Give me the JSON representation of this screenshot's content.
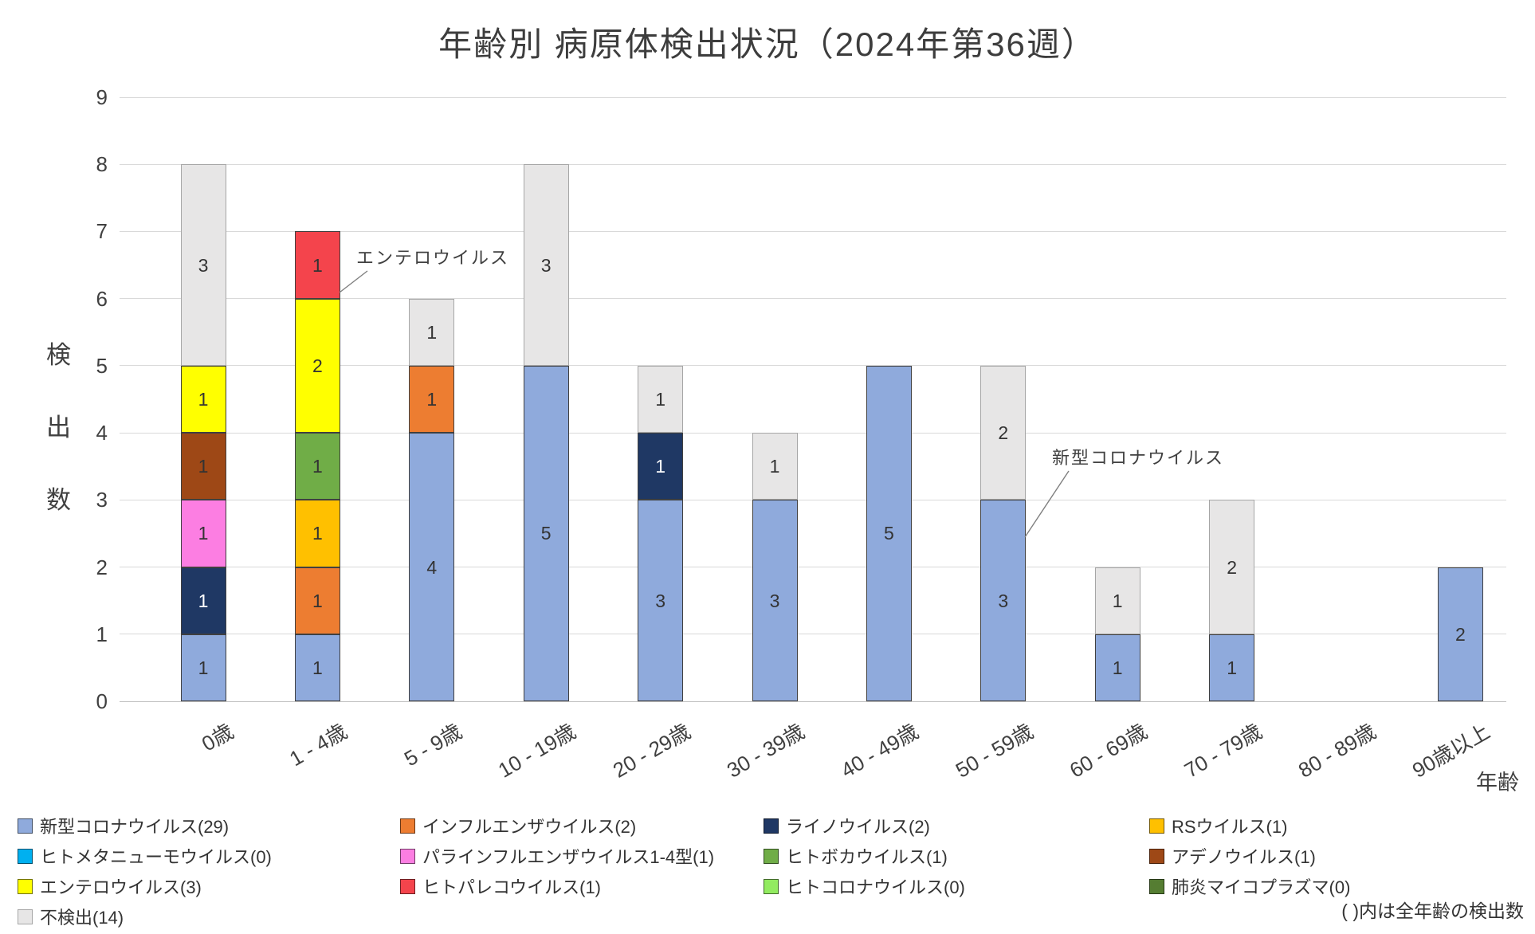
{
  "page": {
    "note": "( )内は全年齢の検出数"
  },
  "chart_data": {
    "type": "bar",
    "subtype": "stacked",
    "title": "年齢別 病原体検出状況（2024年第36週）",
    "xlabel": "年齢",
    "ylabel": "検出数",
    "ylim": [
      0,
      9
    ],
    "yticks": [
      0,
      1,
      2,
      3,
      4,
      5,
      6,
      7,
      8,
      9
    ],
    "grid": true,
    "legend_position": "bottom",
    "categories": [
      "0歳",
      "1 - 4歳",
      "5 - 9歳",
      "10 - 19歳",
      "20 - 29歳",
      "30 - 39歳",
      "40 - 49歳",
      "50 - 59歳",
      "60 - 69歳",
      "70 - 79歳",
      "80 - 89歳",
      "90歳以上"
    ],
    "series": [
      {
        "name": "新型コロナウイルス",
        "count": 29,
        "legend_label": "新型コロナウイルス(29)",
        "color": "#8FAADC",
        "values": [
          1,
          1,
          4,
          5,
          3,
          3,
          5,
          3,
          1,
          1,
          0,
          2
        ]
      },
      {
        "name": "インフルエンザウイルス",
        "count": 2,
        "legend_label": "インフルエンザウイルス(2)",
        "color": "#ED7D31",
        "values": [
          0,
          1,
          1,
          0,
          0,
          0,
          0,
          0,
          0,
          0,
          0,
          0
        ]
      },
      {
        "name": "ライノウイルス",
        "count": 2,
        "legend_label": "ライノウイルス(2)",
        "color": "#1F3864",
        "value_text_color": "#FFFFFF",
        "values": [
          1,
          0,
          0,
          0,
          1,
          0,
          0,
          0,
          0,
          0,
          0,
          0
        ]
      },
      {
        "name": "RSウイルス",
        "count": 1,
        "legend_label": "RSウイルス(1)",
        "color": "#FFC000",
        "values": [
          0,
          1,
          0,
          0,
          0,
          0,
          0,
          0,
          0,
          0,
          0,
          0
        ]
      },
      {
        "name": "ヒトメタニューモウイルス",
        "count": 0,
        "legend_label": "ヒトメタニューモウイルス(0)",
        "color": "#00B0F0",
        "values": [
          0,
          0,
          0,
          0,
          0,
          0,
          0,
          0,
          0,
          0,
          0,
          0
        ]
      },
      {
        "name": "パラインフルエンザウイルス1-4型",
        "count": 1,
        "legend_label": "パラインフルエンザウイルス1-4型(1)",
        "color": "#FC7EE2",
        "values": [
          1,
          0,
          0,
          0,
          0,
          0,
          0,
          0,
          0,
          0,
          0,
          0
        ]
      },
      {
        "name": "ヒトボカウイルス",
        "count": 1,
        "legend_label": "ヒトボカウイルス(1)",
        "color": "#70AD47",
        "values": [
          0,
          1,
          0,
          0,
          0,
          0,
          0,
          0,
          0,
          0,
          0,
          0
        ]
      },
      {
        "name": "アデノウイルス",
        "count": 1,
        "legend_label": "アデノウイルス(1)",
        "color": "#9E4816",
        "values": [
          1,
          0,
          0,
          0,
          0,
          0,
          0,
          0,
          0,
          0,
          0,
          0
        ]
      },
      {
        "name": "エンテロウイルス",
        "count": 3,
        "legend_label": "エンテロウイルス(3)",
        "color": "#FFFF00",
        "values": [
          1,
          2,
          0,
          0,
          0,
          0,
          0,
          0,
          0,
          0,
          0,
          0
        ]
      },
      {
        "name": "ヒトパレコウイルス",
        "count": 1,
        "legend_label": "ヒトパレコウイルス(1)",
        "color": "#F4444C",
        "values": [
          0,
          1,
          0,
          0,
          0,
          0,
          0,
          0,
          0,
          0,
          0,
          0
        ]
      },
      {
        "name": "ヒトコロナウイルス",
        "count": 0,
        "legend_label": "ヒトコロナウイルス(0)",
        "color": "#92EB60",
        "values": [
          0,
          0,
          0,
          0,
          0,
          0,
          0,
          0,
          0,
          0,
          0,
          0
        ]
      },
      {
        "name": "肺炎マイコプラズマ",
        "count": 0,
        "legend_label": "肺炎マイコプラズマ(0)",
        "color": "#557D32",
        "values": [
          0,
          0,
          0,
          0,
          0,
          0,
          0,
          0,
          0,
          0,
          0,
          0
        ]
      },
      {
        "name": "不検出",
        "count": 14,
        "legend_label": "不検出(14)",
        "color": "#E7E6E6",
        "border_color": "#A6A6A6",
        "values": [
          3,
          0,
          1,
          3,
          1,
          1,
          0,
          2,
          1,
          2,
          0,
          0
        ]
      }
    ],
    "annotations": [
      {
        "text": "エンテロウイルス"
      },
      {
        "text": "新型コロナウイルス"
      }
    ]
  }
}
